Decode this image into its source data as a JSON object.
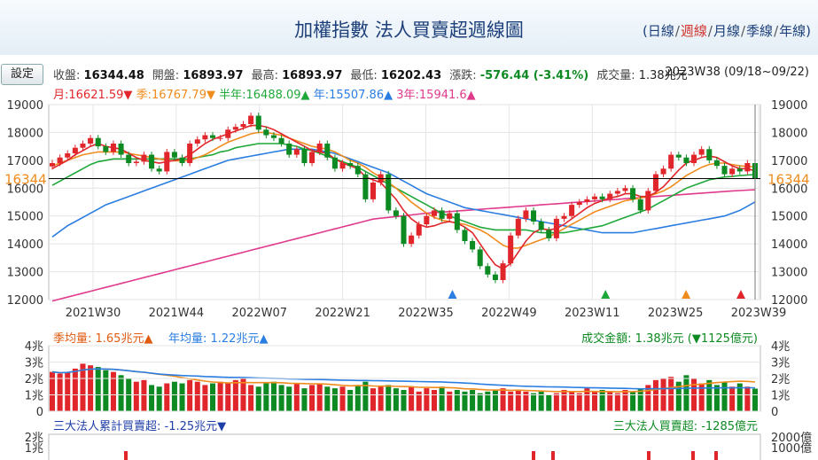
{
  "header": {
    "title": "加權指數 法人買賣超週線圖",
    "period_links": [
      "日線",
      "週線",
      "月線",
      "季線",
      "年線"
    ],
    "period_active": "週線",
    "settings_label": "設定"
  },
  "quote": {
    "close_label": "收盤:",
    "close": "16344.48",
    "open_label": "開盤:",
    "open": "16893.97",
    "high_label": "最高:",
    "high": "16893.97",
    "low_label": "最低:",
    "low": "16202.43",
    "change_label": "漲跌:",
    "change": "-576.44 (-3.41%)",
    "volume_label": "成交量:",
    "volume": "1.38兆元",
    "week": "2023W38 (09/18~09/22)"
  },
  "moving_averages": [
    {
      "label": "月:16621.59▼",
      "color": "#e0262b"
    },
    {
      "label": "季:16767.79▼",
      "color": "#f08c1e"
    },
    {
      "label": "半年:16488.09▲",
      "color": "#1fa83a"
    },
    {
      "label": "年:15507.86▲",
      "color": "#2a7de1"
    },
    {
      "label": "3年:15941.6▲",
      "color": "#e03a8c"
    }
  ],
  "volume_panel": {
    "season_avg": "季均量: 1.65兆元▲",
    "year_avg": "年均量: 1.22兆元▲",
    "amount": "成交金額: 1.38兆元 (▼1125億元)"
  },
  "inst_panel": {
    "cumulative": "三大法人累計買賣超: -1.25兆元▼",
    "weekly": "三大法人買賣超: -1285億元"
  },
  "chart_data": {
    "type": "candlestick",
    "price_axis": {
      "ylim": [
        12000,
        19000
      ],
      "ticks": [
        12000,
        13000,
        14000,
        15000,
        16000,
        17000,
        18000,
        19000
      ]
    },
    "current_price_label": "16344",
    "current_price": 16344,
    "x_tick_labels": [
      "2021W30",
      "2021W44",
      "2022W07",
      "2022W21",
      "2022W35",
      "2022W49",
      "2023W11",
      "2023W25",
      "2023W39"
    ],
    "close_series": [
      16900,
      17100,
      17250,
      17450,
      17600,
      17800,
      17500,
      17300,
      17600,
      17200,
      16900,
      16950,
      17200,
      16700,
      16600,
      17300,
      17100,
      16900,
      17600,
      17750,
      17900,
      17800,
      17800,
      18100,
      18200,
      18300,
      18600,
      18100,
      17900,
      17800,
      17600,
      17200,
      17400,
      16900,
      17300,
      17600,
      17100,
      16700,
      16900,
      16800,
      16500,
      15600,
      16200,
      16500,
      15200,
      15000,
      14000,
      14300,
      14700,
      15000,
      15200,
      14900,
      15100,
      14500,
      14100,
      13800,
      13200,
      12900,
      12700,
      13300,
      14300,
      14900,
      15200,
      14800,
      14500,
      14200,
      14900,
      15000,
      15400,
      15500,
      15600,
      15700,
      15600,
      15800,
      15900,
      16000,
      15600,
      15200,
      15900,
      16500,
      16700,
      17200,
      17100,
      16900,
      17200,
      17400,
      17000,
      16800,
      16500,
      16700,
      16600,
      16900,
      16344
    ],
    "ma_month": [
      16700,
      16850,
      17000,
      17200,
      17350,
      17500,
      17600,
      17500,
      17450,
      17400,
      17250,
      17100,
      17000,
      16950,
      16900,
      16950,
      17000,
      17050,
      17200,
      17400,
      17600,
      17750,
      17850,
      17950,
      18050,
      18150,
      18250,
      18250,
      18200,
      18100,
      17950,
      17800,
      17650,
      17500,
      17350,
      17300,
      17250,
      17050,
      16900,
      16800,
      16700,
      16400,
      16300,
      16200,
      15900,
      15600,
      15200,
      14900,
      14700,
      14600,
      14650,
      14750,
      14800,
      14750,
      14600,
      14400,
      14000,
      13600,
      13250,
      13100,
      13300,
      13700,
      14100,
      14400,
      14550,
      14500,
      14550,
      14700,
      14900,
      15100,
      15300,
      15450,
      15550,
      15650,
      15700,
      15800,
      15800,
      15700,
      15700,
      15850,
      16050,
      16350,
      16650,
      16900,
      17000,
      17100,
      17150,
      17100,
      16950,
      16800,
      16700,
      16700,
      16621
    ],
    "ma_season": [
      16800,
      16900,
      17000,
      17100,
      17200,
      17250,
      17300,
      17300,
      17300,
      17300,
      17250,
      17200,
      17150,
      17100,
      17050,
      17000,
      16980,
      16980,
      17000,
      17100,
      17200,
      17350,
      17500,
      17650,
      17750,
      17850,
      17950,
      18000,
      18000,
      17950,
      17900,
      17800,
      17700,
      17600,
      17500,
      17450,
      17400,
      17300,
      17150,
      17000,
      16900,
      16750,
      16550,
      16400,
      16200,
      16000,
      15750,
      15500,
      15300,
      15100,
      14950,
      14850,
      14800,
      14750,
      14700,
      14600,
      14500,
      14350,
      14150,
      13950,
      13850,
      13850,
      13950,
      14050,
      14150,
      14250,
      14400,
      14550,
      14700,
      14850,
      15000,
      15150,
      15250,
      15350,
      15450,
      15550,
      15600,
      15650,
      15700,
      15800,
      15900,
      16050,
      16250,
      16450,
      16600,
      16750,
      16850,
      16900,
      16900,
      16850,
      16800,
      16780,
      16767
    ],
    "ma_half": [
      16100,
      16250,
      16400,
      16550,
      16700,
      16850,
      16950,
      17000,
      17050,
      17050,
      17050,
      17050,
      17050,
      17050,
      17050,
      17050,
      17050,
      17050,
      17050,
      17100,
      17150,
      17200,
      17300,
      17350,
      17450,
      17500,
      17550,
      17600,
      17600,
      17600,
      17600,
      17550,
      17500,
      17400,
      17350,
      17250,
      17150,
      17050,
      16950,
      16850,
      16750,
      16600,
      16450,
      16300,
      16150,
      16000,
      15850,
      15700,
      15550,
      15400,
      15250,
      15100,
      15000,
      14900,
      14800,
      14700,
      14600,
      14550,
      14500,
      14500,
      14500,
      14500,
      14500,
      14450,
      14400,
      14400,
      14400,
      14400,
      14450,
      14500,
      14550,
      14600,
      14650,
      14750,
      14850,
      14950,
      15050,
      15150,
      15250,
      15400,
      15550,
      15700,
      15850,
      16000,
      16100,
      16200,
      16300,
      16350,
      16400,
      16420,
      16450,
      16470,
      16488
    ],
    "ma_year": [
      14250,
      14450,
      14650,
      14800,
      14950,
      15100,
      15250,
      15400,
      15500,
      15600,
      15700,
      15800,
      15900,
      16000,
      16100,
      16200,
      16300,
      16400,
      16500,
      16600,
      16700,
      16800,
      16900,
      17000,
      17050,
      17100,
      17150,
      17200,
      17250,
      17300,
      17350,
      17400,
      17400,
      17400,
      17400,
      17350,
      17300,
      17250,
      17150,
      17050,
      16950,
      16850,
      16750,
      16650,
      16550,
      16400,
      16250,
      16100,
      15950,
      15800,
      15700,
      15600,
      15500,
      15400,
      15300,
      15250,
      15200,
      15150,
      15100,
      15050,
      15000,
      14950,
      14900,
      14850,
      14800,
      14750,
      14700,
      14650,
      14600,
      14550,
      14500,
      14450,
      14400,
      14400,
      14400,
      14400,
      14400,
      14450,
      14500,
      14550,
      14600,
      14650,
      14700,
      14750,
      14800,
      14850,
      14900,
      14950,
      15000,
      15100,
      15200,
      15350,
      15507
    ],
    "ma_3yr": [
      11950,
      12020,
      12090,
      12160,
      12230,
      12300,
      12370,
      12440,
      12510,
      12580,
      12650,
      12720,
      12790,
      12860,
      12930,
      13000,
      13070,
      13140,
      13210,
      13280,
      13350,
      13420,
      13490,
      13560,
      13630,
      13700,
      13770,
      13840,
      13910,
      13980,
      14050,
      14120,
      14190,
      14260,
      14330,
      14400,
      14470,
      14540,
      14610,
      14680,
      14750,
      14820,
      14890,
      14920,
      14950,
      14980,
      15010,
      15040,
      15070,
      15100,
      15120,
      15140,
      15160,
      15180,
      15200,
      15220,
      15240,
      15260,
      15280,
      15300,
      15320,
      15340,
      15360,
      15380,
      15400,
      15420,
      15440,
      15460,
      15480,
      15500,
      15520,
      15540,
      15560,
      15580,
      15600,
      15620,
      15640,
      15660,
      15680,
      15700,
      15720,
      15740,
      15760,
      15780,
      15800,
      15820,
      15840,
      15860,
      15880,
      15900,
      15915,
      15930,
      15941
    ],
    "markers": [
      {
        "label": "2022W35",
        "color": "#2a7de1"
      },
      {
        "label": "2023W11",
        "color": "#1fa83a"
      },
      {
        "label": "2023W25",
        "color": "#f08c1e"
      },
      {
        "label": "2023W39",
        "color": "#e0262b"
      }
    ],
    "volume_axis": {
      "ylim": [
        0,
        4
      ],
      "ticks": [
        "0",
        "1兆",
        "2兆",
        "3兆",
        "4兆"
      ]
    },
    "volume": [
      2.4,
      2.3,
      2.4,
      2.6,
      2.9,
      2.8,
      2.7,
      2.5,
      2.4,
      2.2,
      2.0,
      1.8,
      1.9,
      1.6,
      1.5,
      1.7,
      1.8,
      1.7,
      1.9,
      1.8,
      1.6,
      1.7,
      1.8,
      1.7,
      1.9,
      2.0,
      1.6,
      1.5,
      1.7,
      1.8,
      1.6,
      1.5,
      1.7,
      1.4,
      1.6,
      1.7,
      1.5,
      1.4,
      1.5,
      1.3,
      1.6,
      1.8,
      1.4,
      1.5,
      1.6,
      1.4,
      1.3,
      1.5,
      1.2,
      1.4,
      1.3,
      1.5,
      1.2,
      1.3,
      1.2,
      1.3,
      1.1,
      1.2,
      1.3,
      1.4,
      1.2,
      1.3,
      1.2,
      1.1,
      1.2,
      1.0,
      1.1,
      1.3,
      1.2,
      1.1,
      1.4,
      1.2,
      1.3,
      1.2,
      1.1,
      1.3,
      1.2,
      1.4,
      1.6,
      1.9,
      2.0,
      2.1,
      1.8,
      2.2,
      2.0,
      1.7,
      1.9,
      1.6,
      1.8,
      1.5,
      1.7,
      1.5,
      1.38
    ],
    "inst_axis": {
      "left_ticks": [
        "1兆",
        "2兆"
      ],
      "right_ticks": [
        "1000億",
        "2000億"
      ]
    }
  }
}
